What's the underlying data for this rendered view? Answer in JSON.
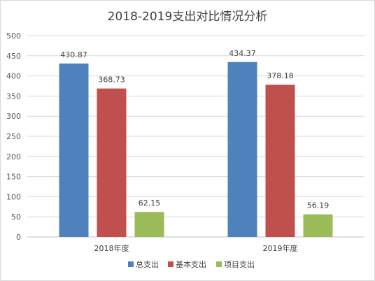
{
  "chart_data": {
    "type": "bar",
    "title": "2018-2019支出对比情况分析",
    "categories": [
      "2018年度",
      "2019年度"
    ],
    "series": [
      {
        "name": "总支出",
        "color": "#4f81bd",
        "values": [
          430.87,
          434.37
        ]
      },
      {
        "name": "基本支出",
        "color": "#c0504d",
        "values": [
          368.73,
          378.18
        ]
      },
      {
        "name": "项目支出",
        "color": "#9bbb59",
        "values": [
          62.15,
          56.19
        ]
      }
    ],
    "ylim": [
      0,
      500
    ],
    "yticks": [
      0,
      50,
      100,
      150,
      200,
      250,
      300,
      350,
      400,
      450,
      500
    ],
    "grid": true,
    "legend_position": "bottom",
    "data_labels": true
  }
}
